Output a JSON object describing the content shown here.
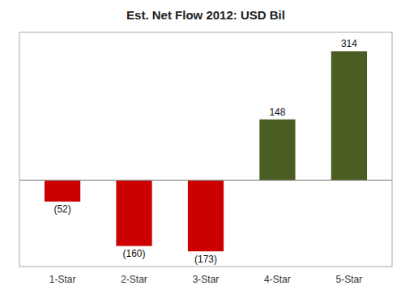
{
  "chart_data": {
    "type": "bar",
    "title": "Est. Net Flow 2012: USD Bil",
    "categories": [
      "1-Star",
      "2-Star",
      "3-Star",
      "4-Star",
      "5-Star"
    ],
    "values": [
      -52,
      -160,
      -173,
      148,
      314
    ],
    "value_labels": [
      "(52)",
      "(160)",
      "(173)",
      "148",
      "314"
    ],
    "colors": [
      "#cc0000",
      "#cc0000",
      "#cc0000",
      "#4a5e23",
      "#4a5e23"
    ],
    "ylim": [
      -210,
      360
    ],
    "grid": false,
    "data_labels": true,
    "tick_labels": "x"
  }
}
